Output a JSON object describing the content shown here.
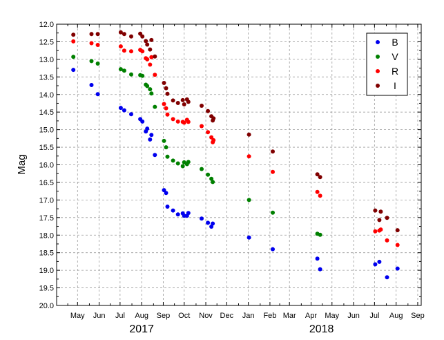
{
  "chart_data": {
    "type": "scatter",
    "ylabel": "Mag",
    "ylim": [
      20.0,
      12.0
    ],
    "y_inverted": true,
    "y_ticks": [
      "12.0",
      "12.5",
      "13.0",
      "13.5",
      "14.0",
      "14.5",
      "15.0",
      "15.5",
      "16.0",
      "16.5",
      "17.0",
      "17.5",
      "18.0",
      "18.5",
      "19.0",
      "19.5",
      "20.0"
    ],
    "xlim": [
      "2017-04-15",
      "2018-09-20"
    ],
    "x_ticks": [
      {
        "date": "2017-05-15",
        "label": "May"
      },
      {
        "date": "2017-06-15",
        "label": "Jun"
      },
      {
        "date": "2017-07-15",
        "label": "Jul"
      },
      {
        "date": "2017-08-15",
        "label": "Aug"
      },
      {
        "date": "2017-09-15",
        "label": "Sep"
      },
      {
        "date": "2017-10-15",
        "label": "Oct"
      },
      {
        "date": "2017-11-15",
        "label": "Nov"
      },
      {
        "date": "2017-12-15",
        "label": "Dec"
      },
      {
        "date": "2018-01-15",
        "label": "Jan"
      },
      {
        "date": "2018-02-15",
        "label": "Feb"
      },
      {
        "date": "2018-03-15",
        "label": "Mar"
      },
      {
        "date": "2018-04-15",
        "label": "Apr"
      },
      {
        "date": "2018-05-15",
        "label": "May"
      },
      {
        "date": "2018-06-15",
        "label": "Jun"
      },
      {
        "date": "2018-07-15",
        "label": "Jul"
      },
      {
        "date": "2018-08-15",
        "label": "Aug"
      },
      {
        "date": "2018-09-15",
        "label": "Sep"
      }
    ],
    "year_labels": [
      {
        "date": "2017-08-15",
        "label": "2017"
      },
      {
        "date": "2018-04-30",
        "label": "2018"
      }
    ],
    "grid": true,
    "legend_position": "top-right",
    "series": [
      {
        "name": "B",
        "color": "#0000ee",
        "points": [
          [
            "2017-05-09",
            13.3
          ],
          [
            "2017-06-04",
            13.73
          ],
          [
            "2017-06-13",
            13.99
          ],
          [
            "2017-07-16",
            14.38
          ],
          [
            "2017-07-21",
            14.45
          ],
          [
            "2017-07-31",
            14.56
          ],
          [
            "2017-08-13",
            14.7
          ],
          [
            "2017-08-16",
            14.77
          ],
          [
            "2017-08-21",
            15.05
          ],
          [
            "2017-08-23",
            14.97
          ],
          [
            "2017-08-27",
            15.28
          ],
          [
            "2017-08-29",
            15.15
          ],
          [
            "2017-09-03",
            15.72
          ],
          [
            "2017-09-16",
            16.72
          ],
          [
            "2017-09-19",
            16.8
          ],
          [
            "2017-09-21",
            17.19
          ],
          [
            "2017-09-29",
            17.3
          ],
          [
            "2017-10-06",
            17.41
          ],
          [
            "2017-10-13",
            17.38
          ],
          [
            "2017-10-15",
            17.45
          ],
          [
            "2017-10-19",
            17.45
          ],
          [
            "2017-10-21",
            17.37
          ],
          [
            "2017-11-09",
            17.53
          ],
          [
            "2017-11-18",
            17.65
          ],
          [
            "2017-11-23",
            17.76
          ],
          [
            "2017-11-25",
            17.67
          ],
          [
            "2018-01-16",
            18.07
          ],
          [
            "2018-02-19",
            18.4
          ],
          [
            "2018-04-24",
            18.67
          ],
          [
            "2018-04-28",
            18.97
          ],
          [
            "2018-07-16",
            18.83
          ],
          [
            "2018-07-22",
            18.76
          ],
          [
            "2018-08-02",
            19.2
          ],
          [
            "2018-08-17",
            18.95
          ]
        ]
      },
      {
        "name": "V",
        "color": "#008000",
        "points": [
          [
            "2017-05-09",
            12.93
          ],
          [
            "2017-06-04",
            13.05
          ],
          [
            "2017-06-13",
            13.12
          ],
          [
            "2017-07-16",
            13.28
          ],
          [
            "2017-07-21",
            13.32
          ],
          [
            "2017-07-31",
            13.43
          ],
          [
            "2017-08-13",
            13.45
          ],
          [
            "2017-08-16",
            13.47
          ],
          [
            "2017-08-21",
            13.72
          ],
          [
            "2017-08-23",
            13.76
          ],
          [
            "2017-08-27",
            13.85
          ],
          [
            "2017-08-29",
            13.97
          ],
          [
            "2017-09-03",
            14.35
          ],
          [
            "2017-09-16",
            15.32
          ],
          [
            "2017-09-19",
            15.5
          ],
          [
            "2017-09-21",
            15.77
          ],
          [
            "2017-09-29",
            15.88
          ],
          [
            "2017-10-06",
            15.96
          ],
          [
            "2017-10-13",
            16.04
          ],
          [
            "2017-10-15",
            15.93
          ],
          [
            "2017-10-19",
            15.98
          ],
          [
            "2017-10-21",
            15.92
          ],
          [
            "2017-11-09",
            16.12
          ],
          [
            "2017-11-18",
            16.28
          ],
          [
            "2017-11-23",
            16.4
          ],
          [
            "2017-11-25",
            16.49
          ],
          [
            "2018-01-16",
            17.0
          ],
          [
            "2018-02-19",
            17.36
          ],
          [
            "2018-04-24",
            17.96
          ],
          [
            "2018-04-28",
            17.99
          ]
        ]
      },
      {
        "name": "R",
        "color": "#ff0000",
        "points": [
          [
            "2017-05-09",
            12.49
          ],
          [
            "2017-06-04",
            12.54
          ],
          [
            "2017-06-13",
            12.59
          ],
          [
            "2017-07-16",
            12.63
          ],
          [
            "2017-07-21",
            12.75
          ],
          [
            "2017-07-31",
            12.77
          ],
          [
            "2017-08-13",
            12.73
          ],
          [
            "2017-08-16",
            12.77
          ],
          [
            "2017-08-21",
            12.97
          ],
          [
            "2017-08-23",
            13.0
          ],
          [
            "2017-08-27",
            13.15
          ],
          [
            "2017-08-29",
            12.94
          ],
          [
            "2017-09-03",
            13.44
          ],
          [
            "2017-09-16",
            14.27
          ],
          [
            "2017-09-19",
            14.39
          ],
          [
            "2017-09-21",
            14.57
          ],
          [
            "2017-09-29",
            14.7
          ],
          [
            "2017-10-06",
            14.77
          ],
          [
            "2017-10-13",
            14.78
          ],
          [
            "2017-10-15",
            14.8
          ],
          [
            "2017-10-19",
            14.72
          ],
          [
            "2017-10-21",
            14.78
          ],
          [
            "2017-11-09",
            14.9
          ],
          [
            "2017-11-18",
            15.07
          ],
          [
            "2017-11-23",
            15.22
          ],
          [
            "2017-11-25",
            15.36
          ],
          [
            "2017-11-26",
            15.3
          ],
          [
            "2018-01-16",
            15.76
          ],
          [
            "2018-02-19",
            16.2
          ],
          [
            "2018-04-24",
            16.77
          ],
          [
            "2018-04-28",
            16.88
          ],
          [
            "2018-07-16",
            17.89
          ],
          [
            "2018-07-22",
            17.87
          ],
          [
            "2018-07-24",
            17.84
          ],
          [
            "2018-08-02",
            18.15
          ],
          [
            "2018-08-17",
            18.28
          ]
        ]
      },
      {
        "name": "I",
        "color": "#800000",
        "points": [
          [
            "2017-05-09",
            12.3
          ],
          [
            "2017-06-04",
            12.28
          ],
          [
            "2017-06-13",
            12.28
          ],
          [
            "2017-07-16",
            12.23
          ],
          [
            "2017-07-21",
            12.28
          ],
          [
            "2017-07-31",
            12.35
          ],
          [
            "2017-08-13",
            12.27
          ],
          [
            "2017-08-16",
            12.35
          ],
          [
            "2017-08-21",
            12.48
          ],
          [
            "2017-08-23",
            12.58
          ],
          [
            "2017-08-27",
            12.72
          ],
          [
            "2017-08-29",
            12.45
          ],
          [
            "2017-09-03",
            12.92
          ],
          [
            "2017-09-16",
            13.67
          ],
          [
            "2017-09-19",
            13.82
          ],
          [
            "2017-09-21",
            13.98
          ],
          [
            "2017-09-29",
            14.17
          ],
          [
            "2017-10-06",
            14.24
          ],
          [
            "2017-10-13",
            14.16
          ],
          [
            "2017-10-15",
            14.28
          ],
          [
            "2017-10-19",
            14.14
          ],
          [
            "2017-10-21",
            14.21
          ],
          [
            "2017-11-09",
            14.32
          ],
          [
            "2017-11-18",
            14.47
          ],
          [
            "2017-11-23",
            14.62
          ],
          [
            "2017-11-25",
            14.74
          ],
          [
            "2017-11-26",
            14.68
          ],
          [
            "2018-01-16",
            15.14
          ],
          [
            "2018-02-19",
            15.62
          ],
          [
            "2018-04-24",
            16.27
          ],
          [
            "2018-04-28",
            16.35
          ],
          [
            "2018-07-16",
            17.3
          ],
          [
            "2018-07-22",
            17.57
          ],
          [
            "2018-07-24",
            17.33
          ],
          [
            "2018-08-02",
            17.51
          ],
          [
            "2018-08-17",
            17.86
          ]
        ]
      }
    ]
  }
}
